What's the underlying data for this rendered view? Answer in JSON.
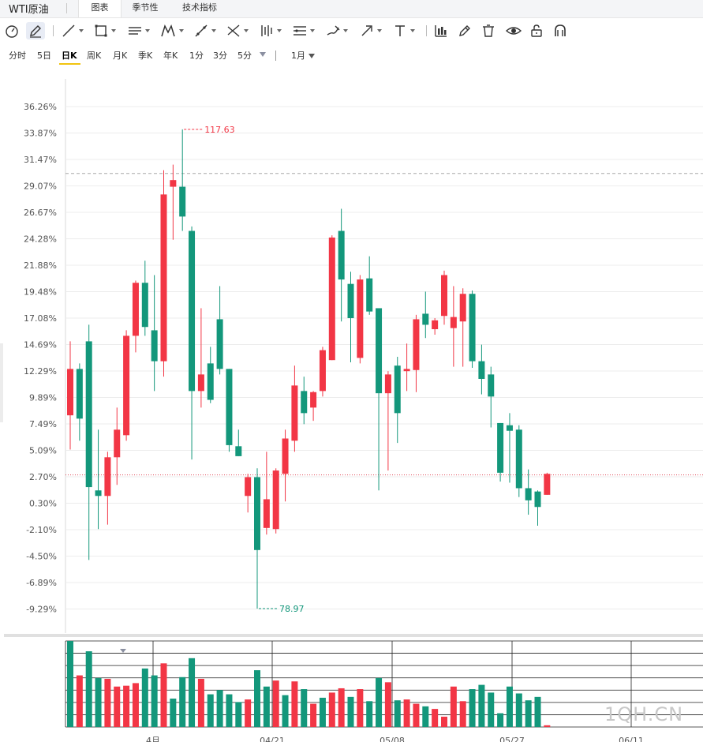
{
  "header": {
    "instrument": "WTI原油",
    "tabs": [
      {
        "label": "图表",
        "active": true
      },
      {
        "label": "季节性",
        "active": false
      },
      {
        "label": "技术指标",
        "active": false
      }
    ]
  },
  "toolbar": {
    "tools": [
      "gauge-icon",
      "pen-icon",
      "line-icon",
      "rectangle-icon",
      "parallel-lines-icon",
      "pattern-icon",
      "measure-icon",
      "fibonacci-icon",
      "bars-icon",
      "channel-icon",
      "brush-icon",
      "arrow-icon",
      "text-icon",
      "bar-chart-icon",
      "eraser-icon",
      "trash-icon",
      "eye-icon",
      "unlock-icon",
      "magnet-icon"
    ]
  },
  "periods": {
    "items": [
      "分时",
      "5日",
      "日K",
      "周K",
      "月K",
      "季K",
      "年K",
      "1分",
      "3分",
      "5分"
    ],
    "active": "日K",
    "range": "1月"
  },
  "colors": {
    "up": "#f23645",
    "down": "#13977b",
    "grid": "#ececec",
    "axis_text": "#555555"
  },
  "chart_data": {
    "type": "candlestick",
    "yaxis": {
      "ticks": [
        "36.26%",
        "33.87%",
        "31.47%",
        "29.07%",
        "26.67%",
        "24.28%",
        "21.88%",
        "19.48%",
        "17.08%",
        "14.69%",
        "12.29%",
        "9.89%",
        "7.49%",
        "5.09%",
        "2.70%",
        "0.30%",
        "-2.10%",
        "-4.50%",
        "-6.89%",
        "-9.29%"
      ],
      "range": [
        -10.5,
        37.5
      ]
    },
    "xaxis": {
      "labels": [
        "4月",
        "04/21",
        "05/08",
        "05/27",
        "06/11"
      ]
    },
    "annotations": {
      "high_label": "117.63",
      "low_label": "78.97"
    },
    "reference_lines": {
      "dashed_level": 30.2,
      "current_level": 2.9
    },
    "candles": [
      {
        "o": 8.3,
        "h": 15.0,
        "l": 5.2,
        "c": 12.5
      },
      {
        "o": 12.5,
        "h": 13.0,
        "l": 6.0,
        "c": 8.0
      },
      {
        "o": 15.0,
        "h": 16.5,
        "l": -4.8,
        "c": 1.8
      },
      {
        "o": 1.5,
        "h": 7.0,
        "l": -2.0,
        "c": 1.0
      },
      {
        "o": 1.0,
        "h": 5.0,
        "l": -1.6,
        "c": 4.5
      },
      {
        "o": 4.5,
        "h": 9.0,
        "l": 2.0,
        "c": 7.0
      },
      {
        "o": 6.5,
        "h": 16.0,
        "l": 6.0,
        "c": 15.5
      },
      {
        "o": 15.5,
        "h": 20.5,
        "l": 14.0,
        "c": 20.3
      },
      {
        "o": 20.3,
        "h": 22.3,
        "l": 15.5,
        "c": 16.3
      },
      {
        "o": 16.0,
        "h": 21.0,
        "l": 10.5,
        "c": 13.2
      },
      {
        "o": 13.2,
        "h": 30.5,
        "l": 11.8,
        "c": 28.3
      },
      {
        "o": 29.0,
        "h": 31.0,
        "l": 24.2,
        "c": 29.6
      },
      {
        "o": 29.0,
        "h": 34.2,
        "l": 25.0,
        "c": 26.3
      },
      {
        "o": 25.0,
        "h": 25.4,
        "l": 4.3,
        "c": 10.5
      },
      {
        "o": 10.5,
        "h": 18.0,
        "l": 9.0,
        "c": 12.0
      },
      {
        "o": 13.0,
        "h": 14.5,
        "l": 9.4,
        "c": 9.7
      },
      {
        "o": 17.0,
        "h": 20.0,
        "l": 12.0,
        "c": 12.5
      },
      {
        "o": 12.5,
        "h": 12.5,
        "l": 5.0,
        "c": 5.6
      },
      {
        "o": 5.5,
        "h": 7.0,
        "l": 4.6,
        "c": 4.6
      },
      {
        "o": 1.0,
        "h": 3.0,
        "l": -0.5,
        "c": 2.7
      },
      {
        "o": 2.7,
        "h": 3.5,
        "l": -9.2,
        "c": -3.9
      },
      {
        "o": -1.9,
        "h": 5.0,
        "l": -2.5,
        "c": 0.7
      },
      {
        "o": -2.0,
        "h": 3.5,
        "l": -2.4,
        "c": 3.3
      },
      {
        "o": 3.0,
        "h": 7.0,
        "l": 0.5,
        "c": 6.2
      },
      {
        "o": 6.0,
        "h": 12.8,
        "l": 5.0,
        "c": 11.0
      },
      {
        "o": 10.5,
        "h": 11.8,
        "l": 7.5,
        "c": 8.5
      },
      {
        "o": 9.0,
        "h": 10.5,
        "l": 7.8,
        "c": 10.4
      },
      {
        "o": 10.5,
        "h": 14.5,
        "l": 10.0,
        "c": 14.2
      },
      {
        "o": 13.3,
        "h": 24.6,
        "l": 13.3,
        "c": 24.4
      },
      {
        "o": 25.0,
        "h": 27.0,
        "l": 16.8,
        "c": 20.6
      },
      {
        "o": 20.2,
        "h": 21.3,
        "l": 13.1,
        "c": 17.1
      },
      {
        "o": 13.5,
        "h": 21.0,
        "l": 13.0,
        "c": 20.6
      },
      {
        "o": 20.7,
        "h": 22.7,
        "l": 17.4,
        "c": 17.7
      },
      {
        "o": 18.0,
        "h": 18.0,
        "l": 1.5,
        "c": 10.3
      },
      {
        "o": 10.3,
        "h": 12.3,
        "l": 3.3,
        "c": 12.0
      },
      {
        "o": 12.8,
        "h": 13.6,
        "l": 5.8,
        "c": 8.5
      },
      {
        "o": 12.3,
        "h": 14.8,
        "l": 10.5,
        "c": 12.5
      },
      {
        "o": 12.4,
        "h": 17.4,
        "l": 10.4,
        "c": 17.0
      },
      {
        "o": 17.5,
        "h": 19.5,
        "l": 15.3,
        "c": 16.5
      },
      {
        "o": 16.1,
        "h": 17.1,
        "l": 15.6,
        "c": 16.9
      },
      {
        "o": 17.3,
        "h": 21.4,
        "l": 16.5,
        "c": 21.0
      },
      {
        "o": 16.2,
        "h": 20.0,
        "l": 12.7,
        "c": 17.2
      },
      {
        "o": 16.8,
        "h": 19.8,
        "l": 12.7,
        "c": 19.3
      },
      {
        "o": 19.3,
        "h": 19.6,
        "l": 12.6,
        "c": 13.2
      },
      {
        "o": 13.2,
        "h": 14.7,
        "l": 10.2,
        "c": 11.6
      },
      {
        "o": 12.0,
        "h": 12.7,
        "l": 7.2,
        "c": 10.0
      },
      {
        "o": 7.6,
        "h": 7.6,
        "l": 2.3,
        "c": 3.1
      },
      {
        "o": 7.4,
        "h": 8.5,
        "l": 2.2,
        "c": 6.9
      },
      {
        "o": 7.0,
        "h": 7.4,
        "l": 0.9,
        "c": 1.7
      },
      {
        "o": 1.7,
        "h": 3.4,
        "l": -0.7,
        "c": 0.6
      },
      {
        "o": 1.4,
        "h": 1.5,
        "l": -1.7,
        "c": 0.0
      },
      {
        "o": 1.1,
        "h": 3.1,
        "l": 1.1,
        "c": 3.0
      }
    ],
    "volume": [
      {
        "v": 100,
        "up": false
      },
      {
        "v": 60,
        "up": true
      },
      {
        "v": 88,
        "up": false
      },
      {
        "v": 57,
        "up": false
      },
      {
        "v": 56,
        "up": true
      },
      {
        "v": 47,
        "up": true
      },
      {
        "v": 48,
        "up": true
      },
      {
        "v": 51,
        "up": true
      },
      {
        "v": 68,
        "up": false
      },
      {
        "v": 60,
        "up": false
      },
      {
        "v": 74,
        "up": true
      },
      {
        "v": 33,
        "up": false
      },
      {
        "v": 58,
        "up": false
      },
      {
        "v": 80,
        "up": false
      },
      {
        "v": 56,
        "up": true
      },
      {
        "v": 38,
        "up": false
      },
      {
        "v": 43,
        "up": false
      },
      {
        "v": 38,
        "up": false
      },
      {
        "v": 29,
        "up": false
      },
      {
        "v": 32,
        "up": true
      },
      {
        "v": 66,
        "up": false
      },
      {
        "v": 47,
        "up": false
      },
      {
        "v": 54,
        "up": true
      },
      {
        "v": 37,
        "up": false
      },
      {
        "v": 53,
        "up": true
      },
      {
        "v": 44,
        "up": false
      },
      {
        "v": 27,
        "up": true
      },
      {
        "v": 34,
        "up": false
      },
      {
        "v": 40,
        "up": true
      },
      {
        "v": 45,
        "up": true
      },
      {
        "v": 35,
        "up": false
      },
      {
        "v": 44,
        "up": true
      },
      {
        "v": 30,
        "up": false
      },
      {
        "v": 57,
        "up": false
      },
      {
        "v": 52,
        "up": true
      },
      {
        "v": 31,
        "up": false
      },
      {
        "v": 32,
        "up": true
      },
      {
        "v": 27,
        "up": true
      },
      {
        "v": 24,
        "up": false
      },
      {
        "v": 21,
        "up": true
      },
      {
        "v": 12,
        "up": true
      },
      {
        "v": 47,
        "up": true
      },
      {
        "v": 30,
        "up": true
      },
      {
        "v": 44,
        "up": false
      },
      {
        "v": 49,
        "up": false
      },
      {
        "v": 40,
        "up": false
      },
      {
        "v": 16,
        "up": false
      },
      {
        "v": 47,
        "up": false
      },
      {
        "v": 39,
        "up": false
      },
      {
        "v": 31,
        "up": false
      },
      {
        "v": 35,
        "up": false
      },
      {
        "v": 2,
        "up": true
      }
    ],
    "volume_scale": 100
  },
  "watermark": "1QH.CN"
}
